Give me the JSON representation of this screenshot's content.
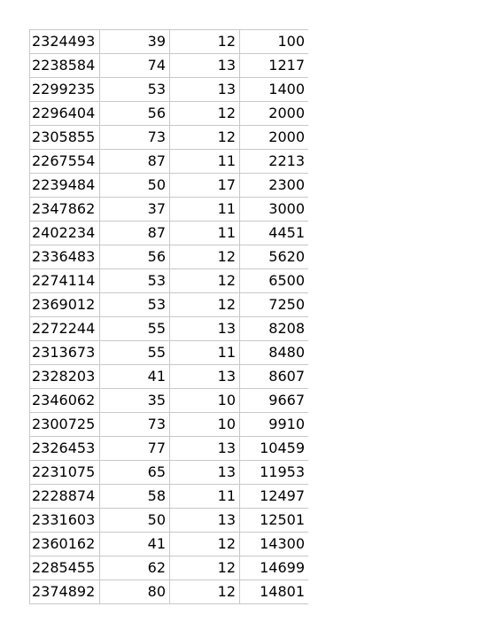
{
  "rows": [
    [
      "2324493",
      "39",
      "12",
      "100"
    ],
    [
      "2238584",
      "74",
      "13",
      "1217"
    ],
    [
      "2299235",
      "53",
      "13",
      "1400"
    ],
    [
      "2296404",
      "56",
      "12",
      "2000"
    ],
    [
      "2305855",
      "73",
      "12",
      "2000"
    ],
    [
      "2267554",
      "87",
      "11",
      "2213"
    ],
    [
      "2239484",
      "50",
      "17",
      "2300"
    ],
    [
      "2347862",
      "37",
      "11",
      "3000"
    ],
    [
      "2402234",
      "87",
      "11",
      "4451"
    ],
    [
      "2336483",
      "56",
      "12",
      "5620"
    ],
    [
      "2274114",
      "53",
      "12",
      "6500"
    ],
    [
      "2369012",
      "53",
      "12",
      "7250"
    ],
    [
      "2272244",
      "55",
      "13",
      "8208"
    ],
    [
      "2313673",
      "55",
      "11",
      "8480"
    ],
    [
      "2328203",
      "41",
      "13",
      "8607"
    ],
    [
      "2346062",
      "35",
      "10",
      "9667"
    ],
    [
      "2300725",
      "73",
      "10",
      "9910"
    ],
    [
      "2326453",
      "77",
      "13",
      "10459"
    ],
    [
      "2231075",
      "65",
      "13",
      "11953"
    ],
    [
      "2228874",
      "58",
      "11",
      "12497"
    ],
    [
      "2331603",
      "50",
      "13",
      "12501"
    ],
    [
      "2360162",
      "41",
      "12",
      "14300"
    ],
    [
      "2285455",
      "62",
      "12",
      "14699"
    ],
    [
      "2374892",
      "80",
      "12",
      "14801"
    ]
  ]
}
